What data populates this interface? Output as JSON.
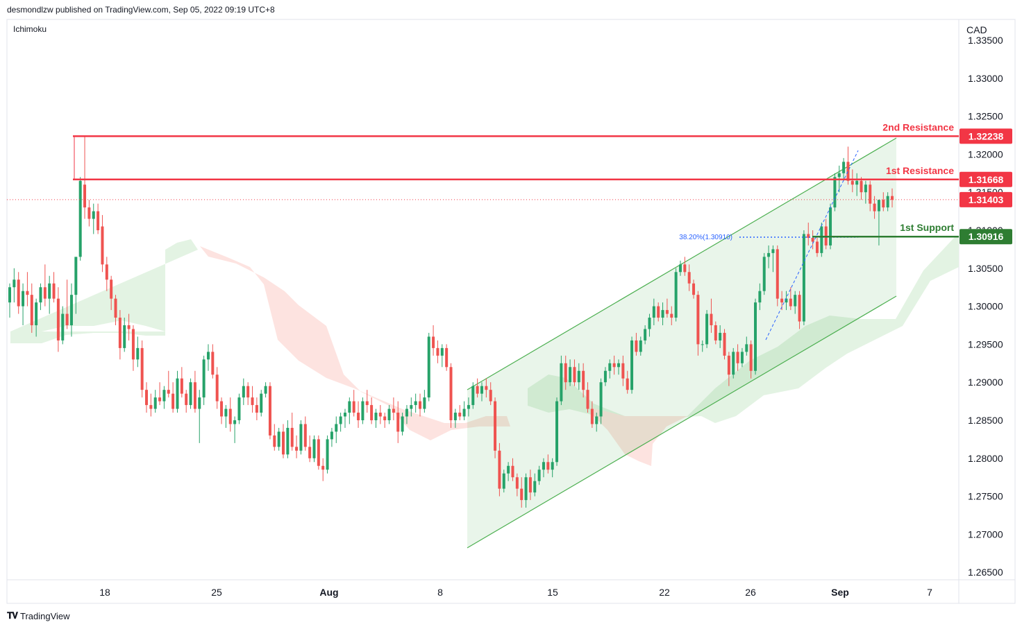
{
  "header": {
    "published": "desmondlzw published on TradingView.com, Sep 05, 2022 09:19 UTC+8"
  },
  "indicator": "Ichimoku",
  "footer": {
    "brand": "TradingView"
  },
  "colors": {
    "up": "#26a269",
    "down": "#ef5350",
    "resistance": "#f23645",
    "support": "#2e7d32",
    "channel": "#4caf50",
    "fib": "#2962ff",
    "cloud_up": "#e3f3e3",
    "cloud_down": "#fde3e0"
  },
  "chart_data": {
    "type": "candlestick",
    "title": "",
    "ylabel": "CAD",
    "ylim": [
      1.2625,
      1.3375
    ],
    "y_ticks": [
      "1.33500",
      "1.33000",
      "1.32500",
      "1.32000",
      "1.31500",
      "1.31000",
      "1.30500",
      "1.30000",
      "1.29500",
      "1.29000",
      "1.28500",
      "1.28000",
      "1.27500",
      "1.27000",
      "1.26500"
    ],
    "x_ticks": [
      "18",
      "25",
      "Aug",
      "8",
      "15",
      "22",
      "26",
      "Sep",
      "7"
    ],
    "current_price": "1.31403",
    "levels": [
      {
        "name": "2nd Resistance",
        "price": 1.32238,
        "label": "1.32238",
        "kind": "resistance"
      },
      {
        "name": "1st Resistance",
        "price": 1.31668,
        "label": "1.31668",
        "kind": "resistance"
      },
      {
        "name": "1st Support",
        "price": 1.30916,
        "label": "1.30916",
        "kind": "support"
      }
    ],
    "fib_label": "38.20%(1.30910)",
    "channel": {
      "upper": [
        [
          1.2895,
          1.3225
        ]
      ],
      "lower": [
        [
          1.2685,
          1.3015
        ]
      ]
    },
    "candles": [
      [
        1.3005,
        1.303,
        1.2985,
        1.3025
      ],
      [
        1.3025,
        1.305,
        1.3005,
        1.3035
      ],
      [
        1.3035,
        1.3045,
        1.299,
        1.3
      ],
      [
        1.3,
        1.303,
        1.2975,
        1.302
      ],
      [
        1.302,
        1.3045,
        1.3,
        1.3015
      ],
      [
        1.3015,
        1.303,
        1.2965,
        1.2975
      ],
      [
        1.2975,
        1.301,
        1.296,
        1.3005
      ],
      [
        1.3005,
        1.303,
        1.2995,
        1.3025
      ],
      [
        1.3025,
        1.3055,
        1.3,
        1.301
      ],
      [
        1.301,
        1.304,
        1.299,
        1.303
      ],
      [
        1.303,
        1.3045,
        1.3005,
        1.301
      ],
      [
        1.301,
        1.3025,
        1.294,
        1.2955
      ],
      [
        1.2955,
        1.3,
        1.295,
        1.299
      ],
      [
        1.299,
        1.3035,
        1.297,
        1.2975
      ],
      [
        1.2975,
        1.303,
        1.296,
        1.3015
      ],
      [
        1.3015,
        1.306,
        1.299,
        1.3065
      ],
      [
        1.3065,
        1.317,
        1.306,
        1.3165
      ],
      [
        1.316,
        1.3224,
        1.3115,
        1.313
      ],
      [
        1.313,
        1.314,
        1.3105,
        1.3115
      ],
      [
        1.3115,
        1.3135,
        1.3095,
        1.3125
      ],
      [
        1.3125,
        1.3135,
        1.3095,
        1.31
      ],
      [
        1.3105,
        1.312,
        1.3045,
        1.3055
      ],
      [
        1.3055,
        1.3065,
        1.302,
        1.3035
      ],
      [
        1.3035,
        1.304,
        1.2995,
        1.301
      ],
      [
        1.301,
        1.3015,
        1.2975,
        1.2985
      ],
      [
        1.2985,
        1.2995,
        1.293,
        1.2945
      ],
      [
        1.2945,
        1.2985,
        1.294,
        1.2975
      ],
      [
        1.2975,
        1.299,
        1.2955,
        1.297
      ],
      [
        1.297,
        1.2975,
        1.2915,
        1.293
      ],
      [
        1.293,
        1.296,
        1.292,
        1.2945
      ],
      [
        1.2945,
        1.2955,
        1.288,
        1.289
      ],
      [
        1.289,
        1.29,
        1.286,
        1.287
      ],
      [
        1.287,
        1.2885,
        1.2855,
        1.2865
      ],
      [
        1.2865,
        1.289,
        1.286,
        1.288
      ],
      [
        1.288,
        1.29,
        1.287,
        1.2875
      ],
      [
        1.2875,
        1.2895,
        1.2865,
        1.289
      ],
      [
        1.289,
        1.2915,
        1.288,
        1.2885
      ],
      [
        1.2885,
        1.29,
        1.286,
        1.2865
      ],
      [
        1.2865,
        1.2915,
        1.286,
        1.2905
      ],
      [
        1.2905,
        1.292,
        1.288,
        1.2885
      ],
      [
        1.2885,
        1.289,
        1.286,
        1.287
      ],
      [
        1.287,
        1.2905,
        1.2865,
        1.29
      ],
      [
        1.29,
        1.2915,
        1.286,
        1.2865
      ],
      [
        1.2865,
        1.289,
        1.282,
        1.288
      ],
      [
        1.288,
        1.2935,
        1.287,
        1.293
      ],
      [
        1.293,
        1.295,
        1.2915,
        1.294
      ],
      [
        1.294,
        1.295,
        1.2905,
        1.291
      ],
      [
        1.291,
        1.292,
        1.2865,
        1.2875
      ],
      [
        1.2875,
        1.288,
        1.2845,
        1.2855
      ],
      [
        1.2855,
        1.287,
        1.284,
        1.2865
      ],
      [
        1.2865,
        1.288,
        1.2835,
        1.2845
      ],
      [
        1.2845,
        1.2855,
        1.282,
        1.285
      ],
      [
        1.285,
        1.2885,
        1.2845,
        1.288
      ],
      [
        1.288,
        1.2905,
        1.287,
        1.2895
      ],
      [
        1.2895,
        1.29,
        1.287,
        1.288
      ],
      [
        1.288,
        1.2895,
        1.286,
        1.287
      ],
      [
        1.287,
        1.288,
        1.285,
        1.286
      ],
      [
        1.286,
        1.289,
        1.2855,
        1.2885
      ],
      [
        1.2885,
        1.29,
        1.288,
        1.2895
      ],
      [
        1.2895,
        1.29,
        1.2825,
        1.283
      ],
      [
        1.283,
        1.2845,
        1.281,
        1.2815
      ],
      [
        1.2815,
        1.284,
        1.281,
        1.2835
      ],
      [
        1.2835,
        1.2845,
        1.28,
        1.2805
      ],
      [
        1.2805,
        1.285,
        1.28,
        1.284
      ],
      [
        1.284,
        1.286,
        1.281,
        1.2815
      ],
      [
        1.2815,
        1.283,
        1.28,
        1.281
      ],
      [
        1.281,
        1.285,
        1.2805,
        1.2845
      ],
      [
        1.2845,
        1.2855,
        1.281,
        1.2815
      ],
      [
        1.2815,
        1.283,
        1.2795,
        1.28
      ],
      [
        1.28,
        1.283,
        1.2795,
        1.2825
      ],
      [
        1.2825,
        1.283,
        1.2785,
        1.279
      ],
      [
        1.279,
        1.28,
        1.277,
        1.2785
      ],
      [
        1.2785,
        1.283,
        1.278,
        1.2825
      ],
      [
        1.2825,
        1.284,
        1.2815,
        1.2835
      ],
      [
        1.2835,
        1.2855,
        1.282,
        1.2845
      ],
      [
        1.2845,
        1.286,
        1.2835,
        1.2855
      ],
      [
        1.2855,
        1.2865,
        1.284,
        1.286
      ],
      [
        1.286,
        1.288,
        1.2845,
        1.2875
      ],
      [
        1.2875,
        1.289,
        1.2855,
        1.286
      ],
      [
        1.286,
        1.2875,
        1.284,
        1.285
      ],
      [
        1.285,
        1.288,
        1.2845,
        1.2875
      ],
      [
        1.2875,
        1.289,
        1.286,
        1.287
      ],
      [
        1.287,
        1.288,
        1.2845,
        1.285
      ],
      [
        1.285,
        1.2865,
        1.284,
        1.286
      ],
      [
        1.286,
        1.287,
        1.2845,
        1.2855
      ],
      [
        1.2855,
        1.286,
        1.284,
        1.285
      ],
      [
        1.285,
        1.287,
        1.2845,
        1.2865
      ],
      [
        1.2865,
        1.288,
        1.285,
        1.286
      ],
      [
        1.286,
        1.2875,
        1.282,
        1.2835
      ],
      [
        1.2835,
        1.286,
        1.283,
        1.2855
      ],
      [
        1.2855,
        1.287,
        1.2845,
        1.2865
      ],
      [
        1.2865,
        1.288,
        1.2855,
        1.287
      ],
      [
        1.287,
        1.2885,
        1.286,
        1.2875
      ],
      [
        1.2875,
        1.2885,
        1.2855,
        1.2865
      ],
      [
        1.2865,
        1.289,
        1.286,
        1.288
      ],
      [
        1.288,
        1.2965,
        1.2875,
        1.296
      ],
      [
        1.296,
        1.2975,
        1.2935,
        1.2945
      ],
      [
        1.2945,
        1.2955,
        1.2925,
        1.2935
      ],
      [
        1.2935,
        1.295,
        1.292,
        1.2945
      ],
      [
        1.2945,
        1.295,
        1.2915,
        1.292
      ],
      [
        1.292,
        1.2925,
        1.284,
        1.285
      ],
      [
        1.285,
        1.2865,
        1.284,
        1.286
      ],
      [
        1.286,
        1.287,
        1.285,
        1.2855
      ],
      [
        1.2855,
        1.2875,
        1.285,
        1.2865
      ],
      [
        1.2865,
        1.288,
        1.2855,
        1.287
      ],
      [
        1.287,
        1.29,
        1.2865,
        1.2895
      ],
      [
        1.2895,
        1.2905,
        1.288,
        1.2885
      ],
      [
        1.2885,
        1.29,
        1.2875,
        1.2895
      ],
      [
        1.2895,
        1.2905,
        1.288,
        1.289
      ],
      [
        1.289,
        1.29,
        1.287,
        1.2875
      ],
      [
        1.2875,
        1.288,
        1.28,
        1.281
      ],
      [
        1.281,
        1.282,
        1.275,
        1.276
      ],
      [
        1.276,
        1.2785,
        1.2755,
        1.278
      ],
      [
        1.278,
        1.2795,
        1.277,
        1.279
      ],
      [
        1.279,
        1.28,
        1.277,
        1.2775
      ],
      [
        1.2775,
        1.278,
        1.275,
        1.276
      ],
      [
        1.276,
        1.2775,
        1.2735,
        1.2745
      ],
      [
        1.2745,
        1.278,
        1.2735,
        1.2775
      ],
      [
        1.2775,
        1.2785,
        1.2745,
        1.2755
      ],
      [
        1.2755,
        1.278,
        1.275,
        1.277
      ],
      [
        1.277,
        1.279,
        1.2765,
        1.2785
      ],
      [
        1.2785,
        1.28,
        1.2775,
        1.2795
      ],
      [
        1.2795,
        1.2805,
        1.278,
        1.2785
      ],
      [
        1.2785,
        1.28,
        1.2775,
        1.2795
      ],
      [
        1.2795,
        1.288,
        1.279,
        1.2875
      ],
      [
        1.2875,
        1.2935,
        1.287,
        1.2925
      ],
      [
        1.2925,
        1.2935,
        1.289,
        1.29
      ],
      [
        1.29,
        1.293,
        1.2895,
        1.292
      ],
      [
        1.292,
        1.293,
        1.2895,
        1.29
      ],
      [
        1.29,
        1.2925,
        1.289,
        1.2915
      ],
      [
        1.2915,
        1.2925,
        1.288,
        1.289
      ],
      [
        1.289,
        1.29,
        1.286,
        1.2865
      ],
      [
        1.2865,
        1.2875,
        1.284,
        1.2845
      ],
      [
        1.2845,
        1.286,
        1.2835,
        1.2855
      ],
      [
        1.2855,
        1.2905,
        1.2845,
        1.29
      ],
      [
        1.29,
        1.292,
        1.2895,
        1.2915
      ],
      [
        1.2915,
        1.293,
        1.2905,
        1.2925
      ],
      [
        1.2925,
        1.2935,
        1.291,
        1.292
      ],
      [
        1.292,
        1.293,
        1.291,
        1.2925
      ],
      [
        1.2925,
        1.2935,
        1.2895,
        1.2905
      ],
      [
        1.2905,
        1.2915,
        1.2885,
        1.289
      ],
      [
        1.289,
        1.296,
        1.2885,
        1.2955
      ],
      [
        1.2955,
        1.2965,
        1.2935,
        1.294
      ],
      [
        1.294,
        1.296,
        1.2935,
        1.2955
      ],
      [
        1.2955,
        1.2975,
        1.295,
        1.297
      ],
      [
        1.297,
        1.299,
        1.296,
        1.2985
      ],
      [
        1.2985,
        1.301,
        1.2975,
        1.3
      ],
      [
        1.3,
        1.3005,
        1.298,
        1.2985
      ],
      [
        1.2985,
        1.3005,
        1.2975,
        1.2995
      ],
      [
        1.2995,
        1.301,
        1.2985,
        1.299
      ],
      [
        1.299,
        1.3,
        1.2975,
        1.2985
      ],
      [
        1.2985,
        1.305,
        1.298,
        1.3045
      ],
      [
        1.3045,
        1.306,
        1.304,
        1.3055
      ],
      [
        1.3055,
        1.3065,
        1.304,
        1.3045
      ],
      [
        1.3045,
        1.3055,
        1.302,
        1.303
      ],
      [
        1.303,
        1.3035,
        1.301,
        1.3015
      ],
      [
        1.3015,
        1.302,
        1.2935,
        1.295
      ],
      [
        1.295,
        1.2955,
        1.294,
        1.295
      ],
      [
        1.295,
        1.2995,
        1.2945,
        1.299
      ],
      [
        1.299,
        1.301,
        1.2965,
        1.2975
      ],
      [
        1.2975,
        1.298,
        1.295,
        1.2955
      ],
      [
        1.2955,
        1.2975,
        1.2945,
        1.2965
      ],
      [
        1.2965,
        1.297,
        1.293,
        1.2935
      ],
      [
        1.2935,
        1.294,
        1.2895,
        1.291
      ],
      [
        1.291,
        1.2945,
        1.2905,
        1.294
      ],
      [
        1.294,
        1.295,
        1.2915,
        1.2925
      ],
      [
        1.2925,
        1.2945,
        1.292,
        1.294
      ],
      [
        1.294,
        1.296,
        1.2935,
        1.295
      ],
      [
        1.295,
        1.2955,
        1.2905,
        1.2915
      ],
      [
        1.2915,
        1.301,
        1.291,
        1.3005
      ],
      [
        1.3005,
        1.303,
        1.2995,
        1.302
      ],
      [
        1.302,
        1.307,
        1.3015,
        1.3065
      ],
      [
        1.3065,
        1.308,
        1.305,
        1.307
      ],
      [
        1.307,
        1.308,
        1.3045,
        1.3075
      ],
      [
        1.3075,
        1.308,
        1.3,
        1.301
      ],
      [
        1.301,
        1.302,
        1.2995,
        1.3005
      ],
      [
        1.3005,
        1.302,
        1.2995,
        1.301
      ],
      [
        1.301,
        1.3025,
        1.2995,
        1.3
      ],
      [
        1.3,
        1.302,
        1.299,
        1.3015
      ],
      [
        1.3015,
        1.302,
        1.297,
        1.298
      ],
      [
        1.298,
        1.31,
        1.2975,
        1.3095
      ],
      [
        1.3095,
        1.311,
        1.308,
        1.309
      ],
      [
        1.309,
        1.31,
        1.3075,
        1.3085
      ],
      [
        1.3085,
        1.309,
        1.3065,
        1.307
      ],
      [
        1.307,
        1.311,
        1.3065,
        1.3105
      ],
      [
        1.3105,
        1.3115,
        1.3075,
        1.308
      ],
      [
        1.308,
        1.3135,
        1.3075,
        1.313
      ],
      [
        1.313,
        1.3175,
        1.3125,
        1.317
      ],
      [
        1.317,
        1.3185,
        1.315,
        1.3175
      ],
      [
        1.3175,
        1.3195,
        1.3165,
        1.319
      ],
      [
        1.319,
        1.321,
        1.316,
        1.3165
      ],
      [
        1.3165,
        1.318,
        1.315,
        1.316
      ],
      [
        1.316,
        1.3175,
        1.3145,
        1.3165
      ],
      [
        1.3165,
        1.317,
        1.314,
        1.315
      ],
      [
        1.315,
        1.3165,
        1.3135,
        1.316
      ],
      [
        1.316,
        1.3165,
        1.3125,
        1.3135
      ],
      [
        1.3135,
        1.3145,
        1.3115,
        1.3125
      ],
      [
        1.3125,
        1.314,
        1.308,
        1.314
      ],
      [
        1.314,
        1.315,
        1.3125,
        1.313
      ],
      [
        1.313,
        1.315,
        1.3125,
        1.3145
      ],
      [
        1.3145,
        1.3155,
        1.313,
        1.314
      ]
    ]
  }
}
